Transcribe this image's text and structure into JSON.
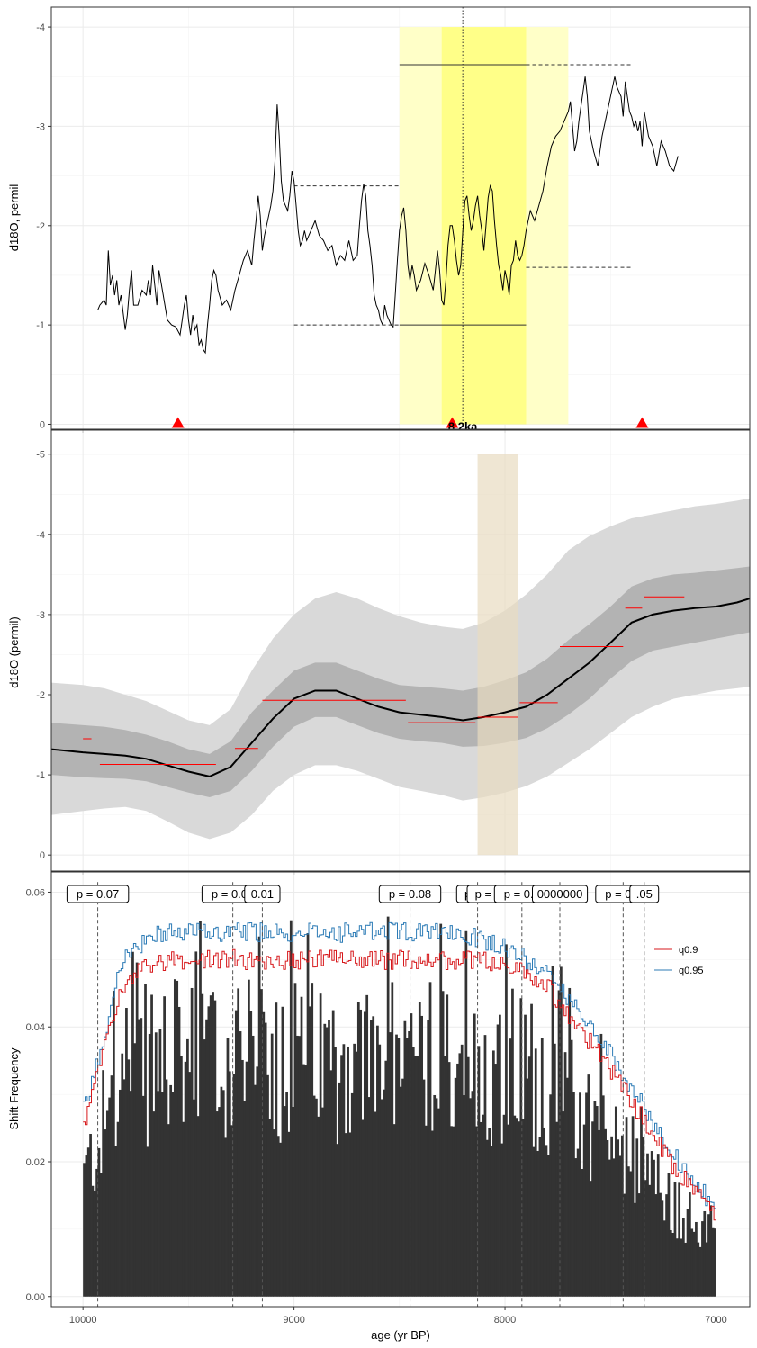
{
  "chart_data": [
    {
      "type": "line",
      "ylabel": "d18O, permil",
      "xlim": [
        10150,
        6840
      ],
      "ylim": [
        0.05,
        -4.2
      ],
      "y_reversed": true,
      "yticks": [
        "0",
        "-1",
        "-2",
        "-3",
        "-4"
      ],
      "event_label": "8.2ka",
      "event_age": 8200,
      "highlight_outer": [
        8500,
        7700
      ],
      "highlight_inner": [
        8300,
        7900
      ],
      "triangle_markers": [
        9550,
        8250,
        7350
      ],
      "reference_lines": [
        {
          "x0": 9000,
          "x1": 8500,
          "y": -2.4,
          "style": "dashed"
        },
        {
          "x0": 9000,
          "x1": 8500,
          "y": -1.0,
          "style": "dashed"
        },
        {
          "x0": 8500,
          "x1": 7900,
          "y": -1.0,
          "style": "solid"
        },
        {
          "x0": 8500,
          "x1": 7900,
          "y": -3.62,
          "style": "solid"
        },
        {
          "x0": 7900,
          "x1": 7400,
          "y": -3.62,
          "style": "dashed"
        },
        {
          "x0": 7900,
          "x1": 7400,
          "y": -1.58,
          "style": "dashed"
        }
      ],
      "series_x": [
        9930,
        9920,
        9900,
        9890,
        9880,
        9870,
        9860,
        9850,
        9840,
        9830,
        9820,
        9800,
        9790,
        9780,
        9770,
        9760,
        9740,
        9720,
        9700,
        9690,
        9680,
        9670,
        9660,
        9650,
        9640,
        9620,
        9600,
        9580,
        9560,
        9540,
        9530,
        9520,
        9510,
        9500,
        9490,
        9480,
        9470,
        9460,
        9450,
        9440,
        9430,
        9420,
        9410,
        9400,
        9390,
        9380,
        9370,
        9360,
        9340,
        9320,
        9300,
        9280,
        9260,
        9240,
        9220,
        9200,
        9190,
        9180,
        9170,
        9160,
        9150,
        9140,
        9130,
        9120,
        9110,
        9100,
        9090,
        9080,
        9070,
        9060,
        9050,
        9040,
        9030,
        9020,
        9010,
        9000,
        8990,
        8980,
        8970,
        8960,
        8950,
        8940,
        8920,
        8900,
        8880,
        8860,
        8840,
        8820,
        8800,
        8780,
        8760,
        8740,
        8720,
        8700,
        8690,
        8680,
        8670,
        8660,
        8650,
        8640,
        8630,
        8620,
        8610,
        8600,
        8590,
        8580,
        8570,
        8560,
        8550,
        8540,
        8530,
        8520,
        8510,
        8500,
        8490,
        8480,
        8470,
        8460,
        8450,
        8440,
        8430,
        8420,
        8400,
        8380,
        8360,
        8340,
        8330,
        8320,
        8310,
        8300,
        8290,
        8280,
        8270,
        8260,
        8250,
        8240,
        8230,
        8220,
        8210,
        8200,
        8190,
        8180,
        8170,
        8160,
        8150,
        8140,
        8130,
        8120,
        8110,
        8100,
        8090,
        8080,
        8070,
        8060,
        8050,
        8040,
        8030,
        8020,
        8010,
        8000,
        7990,
        7980,
        7970,
        7960,
        7950,
        7940,
        7930,
        7920,
        7910,
        7900,
        7890,
        7880,
        7860,
        7840,
        7820,
        7800,
        7780,
        7760,
        7740,
        7720,
        7700,
        7690,
        7680,
        7670,
        7660,
        7650,
        7640,
        7630,
        7620,
        7610,
        7600,
        7580,
        7560,
        7540,
        7520,
        7500,
        7480,
        7470,
        7460,
        7450,
        7440,
        7430,
        7420,
        7410,
        7400,
        7390,
        7380,
        7370,
        7360,
        7350,
        7340,
        7320,
        7300,
        7280,
        7260,
        7240,
        7220,
        7200,
        7180,
        7160,
        7140,
        7120,
        7100,
        7080,
        7060,
        7040,
        7020,
        7000
      ],
      "series_y": [
        -1.15,
        -1.2,
        -1.25,
        -1.2,
        -1.75,
        -1.4,
        -1.5,
        -1.3,
        -1.45,
        -1.2,
        -1.3,
        -0.95,
        -1.1,
        -1.35,
        -1.55,
        -1.2,
        -1.2,
        -1.35,
        -1.3,
        -1.45,
        -1.3,
        -1.6,
        -1.4,
        -1.2,
        -1.55,
        -1.3,
        -1.05,
        -1.0,
        -0.98,
        -0.9,
        -1.05,
        -1.2,
        -1.3,
        -1.05,
        -0.9,
        -1.1,
        -0.95,
        -1.0,
        -0.8,
        -0.85,
        -0.75,
        -0.72,
        -1.0,
        -1.2,
        -1.45,
        -1.55,
        -1.5,
        -1.35,
        -1.2,
        -1.25,
        -1.15,
        -1.35,
        -1.5,
        -1.65,
        -1.75,
        -1.6,
        -1.85,
        -2.05,
        -2.3,
        -2.1,
        -1.75,
        -1.9,
        -2.0,
        -2.1,
        -2.2,
        -2.35,
        -2.65,
        -3.22,
        -2.9,
        -2.45,
        -2.25,
        -2.2,
        -2.15,
        -2.3,
        -2.55,
        -2.45,
        -2.2,
        -1.95,
        -1.8,
        -1.85,
        -1.95,
        -1.85,
        -1.95,
        -2.05,
        -1.9,
        -1.85,
        -1.75,
        -1.8,
        -1.6,
        -1.7,
        -1.65,
        -1.85,
        -1.65,
        -1.7,
        -2.0,
        -2.25,
        -2.42,
        -2.3,
        -1.95,
        -1.8,
        -1.6,
        -1.3,
        -1.2,
        -1.15,
        -1.05,
        -1.0,
        -1.2,
        -1.1,
        -1.05,
        -1.0,
        -0.98,
        -1.3,
        -1.65,
        -1.95,
        -2.1,
        -2.18,
        -1.95,
        -1.6,
        -1.45,
        -1.6,
        -1.5,
        -1.35,
        -1.45,
        -1.62,
        -1.5,
        -1.35,
        -1.55,
        -1.75,
        -1.55,
        -1.25,
        -1.2,
        -1.45,
        -1.8,
        -2.0,
        -2.0,
        -1.85,
        -1.65,
        -1.5,
        -1.6,
        -1.95,
        -2.25,
        -2.3,
        -2.1,
        -1.95,
        -2.05,
        -2.2,
        -2.3,
        -2.1,
        -1.95,
        -1.75,
        -2.0,
        -2.28,
        -2.4,
        -2.35,
        -2.05,
        -1.8,
        -1.6,
        -1.5,
        -1.35,
        -1.55,
        -1.45,
        -1.3,
        -1.6,
        -1.65,
        -1.85,
        -1.7,
        -1.65,
        -1.7,
        -1.8,
        -1.95,
        -2.05,
        -2.15,
        -2.05,
        -2.2,
        -2.35,
        -2.6,
        -2.8,
        -2.9,
        -2.95,
        -3.05,
        -3.15,
        -3.25,
        -3.0,
        -2.75,
        -2.85,
        -3.05,
        -3.2,
        -3.35,
        -3.5,
        -3.3,
        -2.95,
        -2.75,
        -2.6,
        -2.9,
        -3.1,
        -3.3,
        -3.5,
        -3.4,
        -3.35,
        -3.3,
        -3.1,
        -3.45,
        -3.3,
        -3.15,
        -3.1,
        -3.0,
        -3.05,
        -2.95,
        -3.05,
        -2.8,
        -3.15,
        -2.9,
        -2.8,
        -2.6,
        -2.85,
        -2.75,
        -2.6,
        -2.55,
        -2.7
      ]
    },
    {
      "type": "area",
      "ylabel": "d18O (permil)",
      "xlim": [
        10150,
        6840
      ],
      "ylim": [
        0.2,
        -5.3
      ],
      "y_reversed": true,
      "yticks": [
        "0",
        "-1",
        "-2",
        "-3",
        "-4",
        "-5"
      ],
      "highlight": [
        8130,
        7940
      ],
      "x": [
        10150,
        10000,
        9900,
        9800,
        9700,
        9600,
        9500,
        9400,
        9300,
        9200,
        9100,
        9000,
        8900,
        8800,
        8700,
        8600,
        8500,
        8400,
        8300,
        8200,
        8100,
        8000,
        7900,
        7800,
        7700,
        7600,
        7500,
        7400,
        7300,
        7200,
        7100,
        7000,
        6900,
        6840
      ],
      "median": [
        -1.32,
        -1.28,
        -1.26,
        -1.24,
        -1.2,
        -1.12,
        -1.04,
        -0.98,
        -1.1,
        -1.4,
        -1.7,
        -1.95,
        -2.05,
        -2.05,
        -1.95,
        -1.85,
        -1.78,
        -1.75,
        -1.72,
        -1.68,
        -1.72,
        -1.78,
        -1.85,
        -2.0,
        -2.2,
        -2.4,
        -2.65,
        -2.9,
        -3.0,
        -3.05,
        -3.08,
        -3.1,
        -3.15,
        -3.2
      ],
      "inner_lo": [
        -1.0,
        -0.97,
        -0.96,
        -0.95,
        -0.92,
        -0.85,
        -0.78,
        -0.72,
        -0.8,
        -1.05,
        -1.35,
        -1.6,
        -1.72,
        -1.72,
        -1.62,
        -1.52,
        -1.45,
        -1.42,
        -1.4,
        -1.35,
        -1.36,
        -1.4,
        -1.46,
        -1.58,
        -1.75,
        -1.95,
        -2.2,
        -2.42,
        -2.55,
        -2.6,
        -2.65,
        -2.7,
        -2.75,
        -2.78
      ],
      "inner_hi": [
        -1.65,
        -1.62,
        -1.6,
        -1.56,
        -1.5,
        -1.42,
        -1.32,
        -1.26,
        -1.42,
        -1.78,
        -2.05,
        -2.3,
        -2.4,
        -2.4,
        -2.3,
        -2.2,
        -2.12,
        -2.1,
        -2.08,
        -2.05,
        -2.1,
        -2.18,
        -2.28,
        -2.45,
        -2.68,
        -2.88,
        -3.1,
        -3.35,
        -3.45,
        -3.5,
        -3.52,
        -3.55,
        -3.58,
        -3.6
      ],
      "outer_lo": [
        -0.5,
        -0.55,
        -0.58,
        -0.6,
        -0.55,
        -0.42,
        -0.28,
        -0.2,
        -0.28,
        -0.5,
        -0.8,
        -1.0,
        -1.12,
        -1.12,
        -1.05,
        -0.95,
        -0.85,
        -0.8,
        -0.75,
        -0.68,
        -0.72,
        -0.78,
        -0.86,
        -0.98,
        -1.15,
        -1.32,
        -1.52,
        -1.72,
        -1.85,
        -1.95,
        -2.0,
        -2.05,
        -2.08,
        -2.1
      ],
      "outer_hi": [
        -2.15,
        -2.12,
        -2.08,
        -2.0,
        -1.92,
        -1.8,
        -1.68,
        -1.62,
        -1.82,
        -2.3,
        -2.7,
        -3.0,
        -3.2,
        -3.28,
        -3.2,
        -3.08,
        -2.98,
        -2.9,
        -2.85,
        -2.82,
        -2.9,
        -3.05,
        -3.25,
        -3.5,
        -3.8,
        -3.98,
        -4.1,
        -4.2,
        -4.25,
        -4.3,
        -4.35,
        -4.38,
        -4.42,
        -4.45
      ],
      "segments": [
        {
          "x0": 10000,
          "x1": 9960,
          "y": -1.45
        },
        {
          "x0": 9920,
          "x1": 9370,
          "y": -1.13
        },
        {
          "x0": 9280,
          "x1": 9170,
          "y": -1.33
        },
        {
          "x0": 9150,
          "x1": 8470,
          "y": -1.93
        },
        {
          "x0": 8460,
          "x1": 8140,
          "y": -1.65
        },
        {
          "x0": 8130,
          "x1": 7940,
          "y": -1.72
        },
        {
          "x0": 7930,
          "x1": 7750,
          "y": -1.9
        },
        {
          "x0": 7740,
          "x1": 7440,
          "y": -2.6
        },
        {
          "x0": 7430,
          "x1": 7350,
          "y": -3.08
        },
        {
          "x0": 7340,
          "x1": 7150,
          "y": -3.22
        }
      ]
    },
    {
      "type": "bar",
      "xlabel": "age (yr BP)",
      "ylabel": "Shift Frequency",
      "xlim": [
        10150,
        6840
      ],
      "ylim": [
        -0.0015,
        0.063
      ],
      "yticks": [
        "0.00",
        "0.02",
        "0.04",
        "0.06"
      ],
      "xticks": [
        "10000",
        "9000",
        "8000",
        "7000"
      ],
      "bar_width": 10,
      "bar_range": [
        10000,
        7000
      ],
      "quantile_anchors_x": [
        10000,
        9960,
        9920,
        9880,
        9850,
        9800,
        9750,
        9700,
        9600,
        9500,
        9400,
        9300,
        9200,
        9100,
        9000,
        8900,
        8800,
        8700,
        8600,
        8500,
        8400,
        8300,
        8200,
        8100,
        8000,
        7900,
        7800,
        7700,
        7600,
        7500,
        7400,
        7300,
        7200,
        7100,
        7000
      ],
      "q09_anchors": [
        0.025,
        0.029,
        0.034,
        0.039,
        0.043,
        0.046,
        0.048,
        0.049,
        0.05,
        0.05,
        0.05,
        0.05,
        0.05,
        0.05,
        0.05,
        0.05,
        0.05,
        0.05,
        0.05,
        0.05,
        0.05,
        0.05,
        0.05,
        0.05,
        0.049,
        0.048,
        0.046,
        0.042,
        0.038,
        0.034,
        0.029,
        0.024,
        0.019,
        0.016,
        0.012
      ],
      "q095_anchors": [
        0.027,
        0.031,
        0.036,
        0.041,
        0.046,
        0.05,
        0.052,
        0.053,
        0.054,
        0.054,
        0.054,
        0.054,
        0.054,
        0.054,
        0.054,
        0.054,
        0.054,
        0.054,
        0.054,
        0.054,
        0.054,
        0.054,
        0.054,
        0.053,
        0.052,
        0.05,
        0.048,
        0.044,
        0.04,
        0.036,
        0.031,
        0.026,
        0.021,
        0.017,
        0.013
      ],
      "legend": [
        {
          "name": "q0.9",
          "color": "#d7191c"
        },
        {
          "name": "q0.95",
          "color": "#2c7bb6"
        }
      ],
      "legend_position": "top-right",
      "shift_lines": [
        9930,
        9290,
        9150,
        8450,
        8130,
        7920,
        7740,
        7440,
        7340
      ],
      "p_labels": [
        {
          "text": "p = 0.07",
          "x": 9930
        },
        {
          "text": "p = 0.01",
          "x": 9290
        },
        {
          "text": "0.01",
          "x": 9150
        },
        {
          "text": "p = 0.08",
          "x": 8450
        },
        {
          "text": "p = 0",
          "x": 8130
        },
        {
          "text": "p = 0",
          "x": 8080
        },
        {
          "text": "p = 0.1",
          "x": 7920
        },
        {
          "text": "0000000",
          "x": 7740
        },
        {
          "text": "p = 0.1",
          "x": 7440
        },
        {
          "text": ".05",
          "x": 7340
        }
      ]
    }
  ],
  "colors": {
    "bar_fill": "#333333",
    "highlight_yellow_outer": "#ffffc8",
    "highlight_yellow_inner": "#ffff88",
    "highlight_tan": "#e8dcc0",
    "band_outer": "#d9d9d9",
    "band_inner": "#b3b3b3",
    "red_marker": "#ff0000",
    "segment_red": "#ff0000"
  }
}
